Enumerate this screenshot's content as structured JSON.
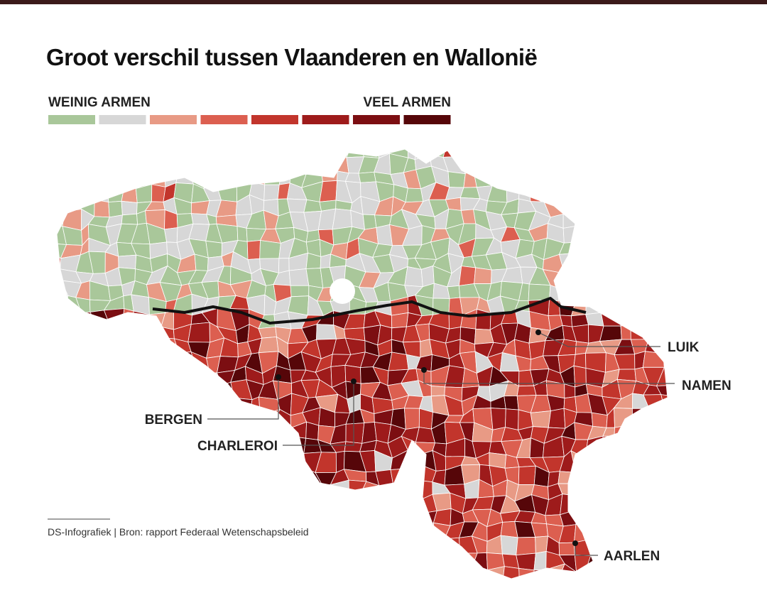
{
  "header": {
    "title": "Groot verschil tussen Vlaanderen en Wallonië"
  },
  "legend": {
    "low_label": "WEINIG ARMEN",
    "high_label": "VEEL ARMEN",
    "colors": [
      "#a9c79a",
      "#d7d7d7",
      "#e89a85",
      "#dc5f50",
      "#c2352c",
      "#9e1b1b",
      "#7c0e12",
      "#560609"
    ]
  },
  "cities": [
    {
      "label": "LUIK"
    },
    {
      "label": "NAMEN"
    },
    {
      "label": "BERGEN"
    },
    {
      "label": "CHARLEROI"
    },
    {
      "label": "AARLEN"
    }
  ],
  "source": "DS-Infografiek | Bron: rapport Federaal Wetenschapsbeleid"
}
